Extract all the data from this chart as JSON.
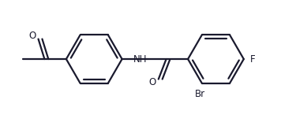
{
  "background_color": "#ffffff",
  "line_color": "#1a1a2e",
  "line_width": 1.6,
  "figsize": [
    3.75,
    1.55
  ],
  "dpi": 100,
  "labels": {
    "O_amide": {
      "text": "O",
      "fontsize": 8.5
    },
    "NH": {
      "text": "NH",
      "fontsize": 8.5
    },
    "Br": {
      "text": "Br",
      "fontsize": 8.5
    },
    "F": {
      "text": "F",
      "fontsize": 8.5
    },
    "O_acetyl": {
      "text": "O",
      "fontsize": 8.5
    }
  }
}
